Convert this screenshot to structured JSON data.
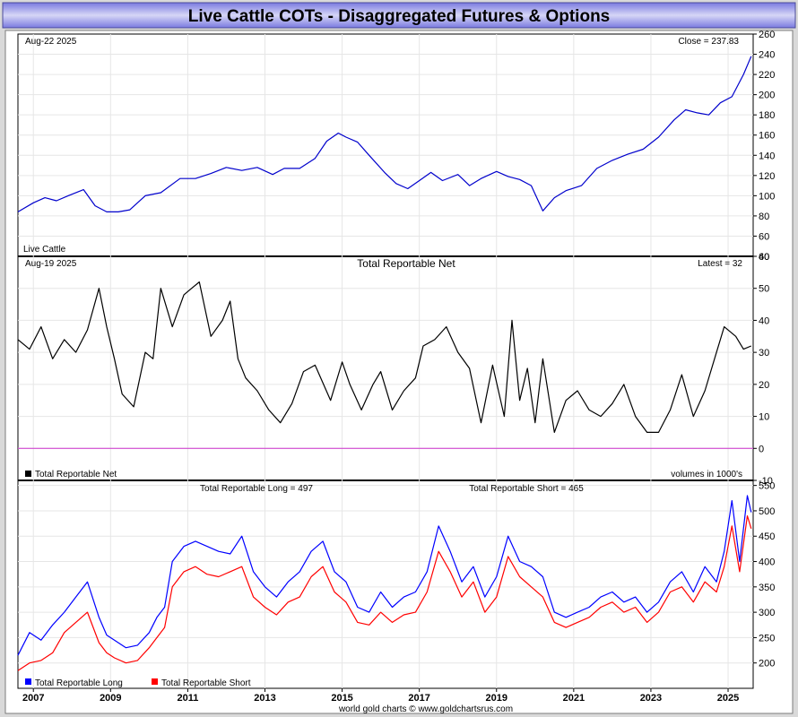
{
  "title": "Live Cattle COTs - Disaggregated Futures & Options",
  "footer": "world gold charts © www.goldchartsrus.com",
  "colors": {
    "title_bg_top": "#6d6dd6",
    "title_bg_mid": "#c9c9f3",
    "price": "#0000cc",
    "net": "#000000",
    "zero_line": "#cc33cc",
    "long": "#0000ff",
    "short": "#ff0000"
  },
  "x_axis": {
    "labels": [
      "2007",
      "2009",
      "2011",
      "2013",
      "2015",
      "2017",
      "2019",
      "2021",
      "2023",
      "2025"
    ],
    "range": [
      2006.6,
      2025.65
    ]
  },
  "chart_data": [
    {
      "type": "line",
      "panel": "price",
      "label_top_left": "Aug-22  2025",
      "label_top_right": "Close = 237.83",
      "label_bottom_left": "Live Cattle",
      "ylim": [
        40,
        260
      ],
      "yticks": [
        "40",
        "60",
        "80",
        "100",
        "120",
        "140",
        "160",
        "180",
        "200",
        "220",
        "240",
        "260"
      ],
      "series": [
        {
          "name": "Live Cattle",
          "x": [
            2006.6,
            2007.0,
            2007.3,
            2007.6,
            2007.9,
            2008.3,
            2008.6,
            2008.9,
            2009.2,
            2009.5,
            2009.9,
            2010.3,
            2010.8,
            2011.2,
            2011.6,
            2012.0,
            2012.4,
            2012.8,
            2013.2,
            2013.5,
            2013.9,
            2014.3,
            2014.6,
            2014.9,
            2015.1,
            2015.4,
            2015.7,
            2016.1,
            2016.4,
            2016.7,
            2017.0,
            2017.3,
            2017.6,
            2018.0,
            2018.3,
            2018.6,
            2019.0,
            2019.3,
            2019.6,
            2019.9,
            2020.2,
            2020.5,
            2020.8,
            2021.2,
            2021.6,
            2022.0,
            2022.4,
            2022.8,
            2023.2,
            2023.6,
            2023.9,
            2024.2,
            2024.5,
            2024.8,
            2025.1,
            2025.4,
            2025.6
          ],
          "values": [
            84,
            93,
            98,
            95,
            100,
            106,
            90,
            84,
            84,
            86,
            100,
            103,
            117,
            117,
            122,
            128,
            125,
            128,
            121,
            127,
            127,
            137,
            154,
            162,
            158,
            153,
            140,
            123,
            112,
            107,
            115,
            123,
            115,
            121,
            110,
            117,
            124,
            119,
            116,
            110,
            85,
            98,
            105,
            110,
            127,
            135,
            141,
            146,
            158,
            175,
            185,
            182,
            180,
            192,
            198,
            220,
            238
          ]
        }
      ]
    },
    {
      "type": "line",
      "panel": "net",
      "title": "Total Reportable Net",
      "label_top_left": "Aug-19  2025",
      "label_top_right": "Latest = 32",
      "label_bottom_right": "volumes in 1000's",
      "legend": [
        {
          "name": "Total Reportable Net",
          "color": "#000000"
        }
      ],
      "ylim": [
        -10,
        60
      ],
      "yticks": [
        "-10",
        "0",
        "10",
        "20",
        "30",
        "40",
        "50",
        "60"
      ],
      "series": [
        {
          "name": "Total Reportable Net",
          "x": [
            2006.6,
            2006.9,
            2007.2,
            2007.5,
            2007.8,
            2008.1,
            2008.4,
            2008.7,
            2008.9,
            2009.1,
            2009.3,
            2009.6,
            2009.9,
            2010.1,
            2010.3,
            2010.6,
            2010.9,
            2011.1,
            2011.3,
            2011.6,
            2011.9,
            2012.1,
            2012.3,
            2012.5,
            2012.8,
            2013.1,
            2013.4,
            2013.7,
            2014.0,
            2014.3,
            2014.7,
            2015.0,
            2015.2,
            2015.5,
            2015.8,
            2016.0,
            2016.3,
            2016.6,
            2016.9,
            2017.1,
            2017.4,
            2017.7,
            2018.0,
            2018.3,
            2018.6,
            2018.9,
            2019.2,
            2019.4,
            2019.6,
            2019.8,
            2020.0,
            2020.2,
            2020.5,
            2020.8,
            2021.1,
            2021.4,
            2021.7,
            2022.0,
            2022.3,
            2022.6,
            2022.9,
            2023.2,
            2023.5,
            2023.8,
            2024.1,
            2024.4,
            2024.7,
            2024.9,
            2025.2,
            2025.4,
            2025.6
          ],
          "values": [
            34,
            31,
            38,
            28,
            34,
            30,
            37,
            50,
            38,
            28,
            17,
            13,
            30,
            28,
            50,
            38,
            48,
            50,
            52,
            35,
            40,
            46,
            28,
            22,
            18,
            12,
            8,
            14,
            24,
            26,
            15,
            27,
            20,
            12,
            20,
            24,
            12,
            18,
            22,
            32,
            34,
            38,
            30,
            25,
            8,
            26,
            10,
            40,
            15,
            25,
            8,
            28,
            5,
            15,
            18,
            12,
            10,
            14,
            20,
            10,
            5,
            5,
            12,
            23,
            10,
            18,
            30,
            38,
            35,
            31,
            32
          ]
        }
      ]
    },
    {
      "type": "line",
      "panel": "long_short",
      "label_long": "Total Reportable Long = 497",
      "label_short": "Total Reportable Short = 465",
      "legend": [
        {
          "name": "Total Reportable Long",
          "color": "#0000ff"
        },
        {
          "name": "Total Reportable Short",
          "color": "#ff0000"
        }
      ],
      "ylim": [
        150,
        560
      ],
      "yticks": [
        "200",
        "250",
        "300",
        "350",
        "400",
        "450",
        "500",
        "550"
      ],
      "series": [
        {
          "name": "Total Reportable Long",
          "x": [
            2006.6,
            2006.9,
            2007.2,
            2007.5,
            2007.8,
            2008.1,
            2008.4,
            2008.7,
            2008.9,
            2009.1,
            2009.4,
            2009.7,
            2010.0,
            2010.2,
            2010.4,
            2010.6,
            2010.9,
            2011.2,
            2011.5,
            2011.8,
            2012.1,
            2012.4,
            2012.7,
            2013.0,
            2013.3,
            2013.6,
            2013.9,
            2014.2,
            2014.5,
            2014.8,
            2015.1,
            2015.4,
            2015.7,
            2016.0,
            2016.3,
            2016.6,
            2016.9,
            2017.2,
            2017.5,
            2017.8,
            2018.1,
            2018.4,
            2018.7,
            2019.0,
            2019.3,
            2019.6,
            2019.9,
            2020.2,
            2020.5,
            2020.8,
            2021.1,
            2021.4,
            2021.7,
            2022.0,
            2022.3,
            2022.6,
            2022.9,
            2023.2,
            2023.5,
            2023.8,
            2024.1,
            2024.4,
            2024.7,
            2024.9,
            2025.1,
            2025.3,
            2025.5,
            2025.6
          ],
          "values": [
            215,
            260,
            245,
            275,
            300,
            330,
            360,
            290,
            255,
            245,
            230,
            235,
            260,
            290,
            310,
            400,
            430,
            440,
            430,
            420,
            415,
            450,
            380,
            350,
            330,
            360,
            380,
            420,
            440,
            380,
            360,
            310,
            300,
            340,
            310,
            330,
            340,
            380,
            470,
            420,
            360,
            390,
            330,
            370,
            450,
            400,
            390,
            370,
            300,
            290,
            300,
            310,
            330,
            340,
            320,
            330,
            300,
            320,
            360,
            380,
            340,
            390,
            360,
            420,
            520,
            400,
            530,
            497
          ]
        },
        {
          "name": "Total Reportable Short",
          "x": [
            2006.6,
            2006.9,
            2007.2,
            2007.5,
            2007.8,
            2008.1,
            2008.4,
            2008.7,
            2008.9,
            2009.1,
            2009.4,
            2009.7,
            2010.0,
            2010.2,
            2010.4,
            2010.6,
            2010.9,
            2011.2,
            2011.5,
            2011.8,
            2012.1,
            2012.4,
            2012.7,
            2013.0,
            2013.3,
            2013.6,
            2013.9,
            2014.2,
            2014.5,
            2014.8,
            2015.1,
            2015.4,
            2015.7,
            2016.0,
            2016.3,
            2016.6,
            2016.9,
            2017.2,
            2017.5,
            2017.8,
            2018.1,
            2018.4,
            2018.7,
            2019.0,
            2019.3,
            2019.6,
            2019.9,
            2020.2,
            2020.5,
            2020.8,
            2021.1,
            2021.4,
            2021.7,
            2022.0,
            2022.3,
            2022.6,
            2022.9,
            2023.2,
            2023.5,
            2023.8,
            2024.1,
            2024.4,
            2024.7,
            2024.9,
            2025.1,
            2025.3,
            2025.5,
            2025.6
          ],
          "values": [
            185,
            200,
            205,
            220,
            260,
            280,
            300,
            240,
            220,
            210,
            200,
            205,
            230,
            250,
            270,
            350,
            380,
            390,
            375,
            370,
            380,
            390,
            330,
            310,
            295,
            320,
            330,
            370,
            390,
            340,
            320,
            280,
            275,
            300,
            280,
            295,
            300,
            340,
            420,
            380,
            330,
            360,
            300,
            330,
            410,
            370,
            350,
            330,
            280,
            270,
            280,
            290,
            310,
            320,
            300,
            310,
            280,
            300,
            340,
            350,
            320,
            360,
            340,
            390,
            470,
            380,
            490,
            465
          ]
        }
      ]
    }
  ]
}
